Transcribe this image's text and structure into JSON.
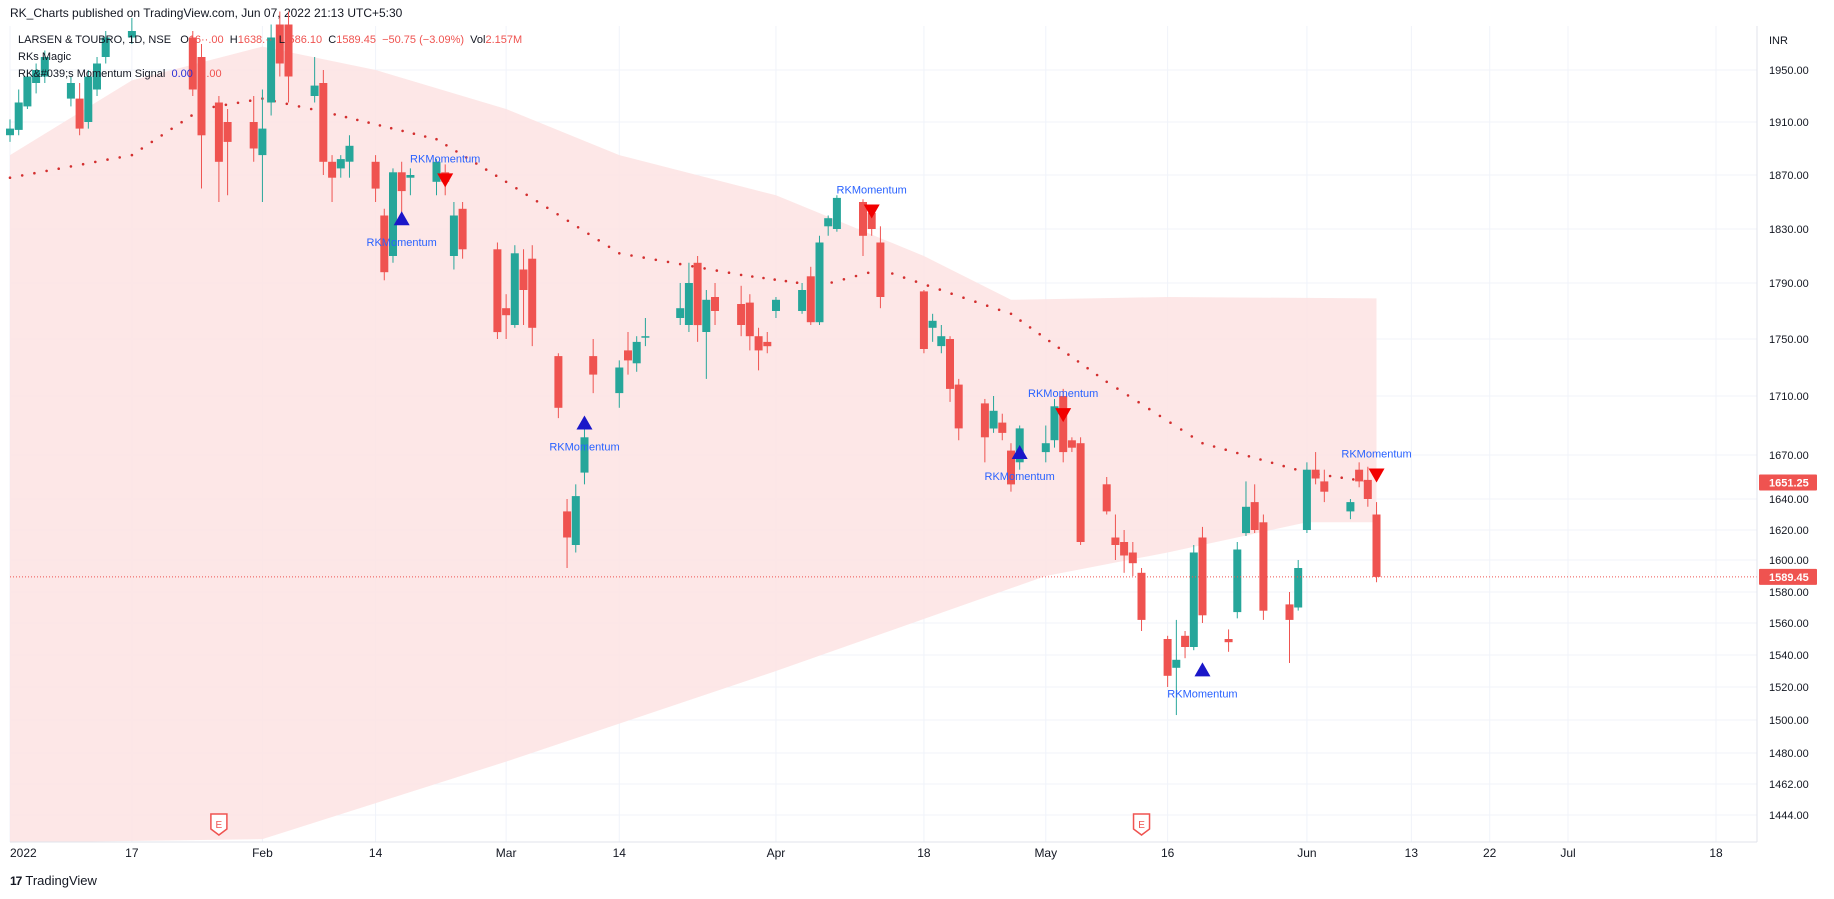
{
  "header": {
    "published": "RK_Charts published on TradingView.com, Jun 07, 2022 21:13 UTC+5:30"
  },
  "legend": {
    "symbol": "LARSEN & TOUBRO, 1D, NSE",
    "o_label": "O",
    "o_value": "16··.00",
    "h_label": "H",
    "h_value": "1638.··",
    "l_label": "L",
    "l_value": "·586.10",
    "c_label": "C",
    "c_value": "1589.45",
    "change": "−50.75 (−3.09%)",
    "vol_label": "Vol",
    "vol_value": "2.157M",
    "indicator1": "RKs Magic",
    "indicator2": "RK&#039;s Momentum Signal",
    "indicator2_v1": "0.00",
    "indicator2_v2": "··.00"
  },
  "footer": {
    "brand": "TradingView"
  },
  "colors": {
    "up": "#26a69a",
    "down": "#ef5350",
    "band": "#fde3e3",
    "dots": "#d32f2f",
    "buy_marker": "#1a17c9",
    "sell_marker": "#f20000",
    "signal_text": "#2962ff",
    "grid": "#f0f3fa"
  },
  "chart_data": {
    "type": "candlestick",
    "currency": "INR",
    "ylim": [
      1430,
      1970
    ],
    "y_ticks": [
      1950,
      1910,
      1870,
      1830,
      1790,
      1750,
      1710,
      1670,
      1640,
      1620,
      1600,
      1580,
      1560,
      1540,
      1520,
      1500,
      1480,
      1462,
      1444
    ],
    "y_tick_labels": [
      "1950.00",
      "1910.00",
      "1870.00",
      "1830.00",
      "1790.00",
      "1750.00",
      "1710.00",
      "1670.00",
      "1640.00",
      "1620.00",
      "1600.00",
      "1580.00",
      "1560.00",
      "1540.00",
      "1520.00",
      "1500.00",
      "1480.00",
      "1462.00",
      "1444.00"
    ],
    "x_labels": [
      {
        "label": "2022",
        "date": "2022-01-03"
      },
      {
        "label": "17",
        "date": "2022-01-17"
      },
      {
        "label": "Feb",
        "date": "2022-02-01"
      },
      {
        "label": "14",
        "date": "2022-02-14"
      },
      {
        "label": "Mar",
        "date": "2022-03-01"
      },
      {
        "label": "14",
        "date": "2022-03-14"
      },
      {
        "label": "Apr",
        "date": "2022-04-01"
      },
      {
        "label": "18",
        "date": "2022-04-18"
      },
      {
        "label": "May",
        "date": "2022-05-02"
      },
      {
        "label": "16",
        "date": "2022-05-16"
      },
      {
        "label": "Jun",
        "date": "2022-06-01"
      },
      {
        "label": "13",
        "date": "2022-06-13"
      },
      {
        "label": "22",
        "date": "2022-06-22"
      },
      {
        "label": "Jul",
        "date": "2022-07-01"
      },
      {
        "label": "18",
        "date": "2022-07-18"
      }
    ],
    "price_labels": [
      {
        "text": "1651.25",
        "value": 1651.25
      },
      {
        "text": "1589.45",
        "value": 1589.45
      }
    ],
    "current_price": 1589.45,
    "candles": [
      {
        "d": "2022-01-03",
        "o": 1900,
        "h": 1912,
        "c": 1905,
        "l": 1895
      },
      {
        "d": "2022-01-04",
        "o": 1904,
        "h": 1935,
        "c": 1925,
        "l": 1900
      },
      {
        "d": "2022-01-05",
        "o": 1922,
        "h": 1950,
        "c": 1945,
        "l": 1920
      },
      {
        "d": "2022-01-06",
        "o": 1940,
        "h": 1955,
        "c": 1950,
        "l": 1932
      },
      {
        "d": "2022-01-07",
        "o": 1945,
        "h": 1965,
        "c": 1960,
        "l": 1940
      },
      {
        "d": "2022-01-10",
        "o": 1928,
        "h": 1945,
        "c": 1940,
        "l": 1922
      },
      {
        "d": "2022-01-11",
        "o": 1928,
        "h": 1940,
        "c": 1905,
        "l": 1900
      },
      {
        "d": "2022-01-12",
        "o": 1910,
        "h": 1950,
        "c": 1945,
        "l": 1905
      },
      {
        "d": "2022-01-13",
        "o": 1935,
        "h": 1960,
        "c": 1955,
        "l": 1930
      },
      {
        "d": "2022-01-14",
        "o": 1960,
        "h": 1980,
        "c": 1975,
        "l": 1955
      },
      {
        "d": "2022-01-17",
        "o": 1975,
        "h": 1990,
        "c": 1980,
        "l": 1970
      },
      {
        "d": "2022-01-24",
        "o": 1975,
        "h": 1980,
        "c": 1935,
        "l": 1930
      },
      {
        "d": "2022-01-25",
        "o": 1960,
        "h": 1970,
        "c": 1900,
        "l": 1860
      },
      {
        "d": "2022-01-27",
        "o": 1925,
        "h": 1930,
        "c": 1880,
        "l": 1850
      },
      {
        "d": "2022-01-28",
        "o": 1910,
        "h": 1920,
        "c": 1895,
        "l": 1855
      },
      {
        "d": "2022-01-31",
        "o": 1910,
        "h": 1930,
        "c": 1890,
        "l": 1880
      },
      {
        "d": "2022-02-01",
        "o": 1885,
        "h": 1935,
        "c": 1905,
        "l": 1850
      },
      {
        "d": "2022-02-02",
        "o": 1925,
        "h": 1985,
        "c": 1975,
        "l": 1915
      },
      {
        "d": "2022-02-03",
        "o": 1985,
        "h": 1995,
        "c": 1955,
        "l": 1945
      },
      {
        "d": "2022-02-04",
        "o": 1985,
        "h": 1995,
        "c": 1945,
        "l": 1925
      },
      {
        "d": "2022-02-07",
        "o": 1930,
        "h": 1960,
        "c": 1938,
        "l": 1925
      },
      {
        "d": "2022-02-08",
        "o": 1940,
        "h": 1950,
        "c": 1880,
        "l": 1870
      },
      {
        "d": "2022-02-09",
        "o": 1880,
        "h": 1885,
        "c": 1868,
        "l": 1850
      },
      {
        "d": "2022-02-10",
        "o": 1875,
        "h": 1885,
        "c": 1882,
        "l": 1868
      },
      {
        "d": "2022-02-11",
        "o": 1880,
        "h": 1900,
        "c": 1892,
        "l": 1868
      },
      {
        "d": "2022-02-14",
        "o": 1880,
        "h": 1885,
        "c": 1860,
        "l": 1850
      },
      {
        "d": "2022-02-15",
        "o": 1840,
        "h": 1845,
        "c": 1798,
        "l": 1792
      },
      {
        "d": "2022-02-16",
        "o": 1810,
        "h": 1875,
        "c": 1872,
        "l": 1805
      },
      {
        "d": "2022-02-17",
        "o": 1872,
        "h": 1880,
        "c": 1858,
        "l": 1840
      },
      {
        "d": "2022-02-18",
        "o": 1868,
        "h": 1875,
        "c": 1870,
        "l": 1855
      },
      {
        "d": "2022-02-21",
        "o": 1865,
        "h": 1882,
        "c": 1880,
        "l": 1855
      },
      {
        "d": "2022-02-22",
        "o": 1872,
        "h": 1878,
        "c": 1865,
        "l": 1855
      },
      {
        "d": "2022-02-23",
        "o": 1810,
        "h": 1850,
        "c": 1840,
        "l": 1800
      },
      {
        "d": "2022-02-24",
        "o": 1845,
        "h": 1850,
        "c": 1815,
        "l": 1808
      },
      {
        "d": "2022-02-28",
        "o": 1815,
        "h": 1820,
        "c": 1755,
        "l": 1750
      },
      {
        "d": "2022-03-01",
        "o": 1772,
        "h": 1782,
        "c": 1767,
        "l": 1750
      },
      {
        "d": "2022-03-02",
        "o": 1760,
        "h": 1818,
        "c": 1812,
        "l": 1758
      },
      {
        "d": "2022-03-03",
        "o": 1800,
        "h": 1815,
        "c": 1785,
        "l": 1760
      },
      {
        "d": "2022-03-04",
        "o": 1808,
        "h": 1818,
        "c": 1758,
        "l": 1745
      },
      {
        "d": "2022-03-07",
        "o": 1738,
        "h": 1740,
        "c": 1702,
        "l": 1695
      },
      {
        "d": "2022-03-08",
        "o": 1632,
        "h": 1640,
        "c": 1615,
        "l": 1595
      },
      {
        "d": "2022-03-09",
        "o": 1610,
        "h": 1650,
        "c": 1642,
        "l": 1605
      },
      {
        "d": "2022-03-10",
        "o": 1658,
        "h": 1688,
        "c": 1682,
        "l": 1650
      },
      {
        "d": "2022-03-11",
        "o": 1738,
        "h": 1750,
        "c": 1725,
        "l": 1712
      },
      {
        "d": "2022-03-14",
        "o": 1712,
        "h": 1735,
        "c": 1730,
        "l": 1702
      },
      {
        "d": "2022-03-15",
        "o": 1742,
        "h": 1755,
        "c": 1735,
        "l": 1725
      },
      {
        "d": "2022-03-16",
        "o": 1733,
        "h": 1752,
        "c": 1748,
        "l": 1727
      },
      {
        "d": "2022-03-17",
        "o": 1752,
        "h": 1765,
        "c": 1752,
        "l": 1745
      },
      {
        "d": "2022-03-21",
        "o": 1765,
        "h": 1790,
        "c": 1772,
        "l": 1760
      },
      {
        "d": "2022-03-22",
        "o": 1760,
        "h": 1805,
        "c": 1790,
        "l": 1755
      },
      {
        "d": "2022-03-23",
        "o": 1805,
        "h": 1810,
        "c": 1760,
        "l": 1748
      },
      {
        "d": "2022-03-24",
        "o": 1755,
        "h": 1785,
        "c": 1778,
        "l": 1722
      },
      {
        "d": "2022-03-25",
        "o": 1780,
        "h": 1790,
        "c": 1770,
        "l": 1760
      },
      {
        "d": "2022-03-28",
        "o": 1775,
        "h": 1788,
        "c": 1760,
        "l": 1752
      },
      {
        "d": "2022-03-29",
        "o": 1776,
        "h": 1782,
        "c": 1752,
        "l": 1742
      },
      {
        "d": "2022-03-30",
        "o": 1752,
        "h": 1758,
        "c": 1742,
        "l": 1728
      },
      {
        "d": "2022-03-31",
        "o": 1748,
        "h": 1755,
        "c": 1745,
        "l": 1740
      },
      {
        "d": "2022-04-01",
        "o": 1770,
        "h": 1780,
        "c": 1778,
        "l": 1765
      },
      {
        "d": "2022-04-04",
        "o": 1770,
        "h": 1790,
        "c": 1785,
        "l": 1768
      },
      {
        "d": "2022-04-05",
        "o": 1795,
        "h": 1802,
        "c": 1762,
        "l": 1760
      },
      {
        "d": "2022-04-06",
        "o": 1762,
        "h": 1825,
        "c": 1820,
        "l": 1760
      },
      {
        "d": "2022-04-07",
        "o": 1832,
        "h": 1840,
        "c": 1838,
        "l": 1825
      },
      {
        "d": "2022-04-08",
        "o": 1830,
        "h": 1855,
        "c": 1853,
        "l": 1828
      },
      {
        "d": "2022-04-11",
        "o": 1850,
        "h": 1852,
        "c": 1825,
        "l": 1810
      },
      {
        "d": "2022-04-12",
        "o": 1842,
        "h": 1845,
        "c": 1830,
        "l": 1825
      },
      {
        "d": "2022-04-13",
        "o": 1820,
        "h": 1832,
        "c": 1780,
        "l": 1772
      },
      {
        "d": "2022-04-18",
        "o": 1784,
        "h": 1785,
        "c": 1743,
        "l": 1740
      },
      {
        "d": "2022-04-19",
        "o": 1758,
        "h": 1768,
        "c": 1763,
        "l": 1748
      },
      {
        "d": "2022-04-20",
        "o": 1745,
        "h": 1760,
        "c": 1752,
        "l": 1740
      },
      {
        "d": "2022-04-21",
        "o": 1750,
        "h": 1752,
        "c": 1715,
        "l": 1706
      },
      {
        "d": "2022-04-22",
        "o": 1718,
        "h": 1722,
        "c": 1688,
        "l": 1680
      },
      {
        "d": "2022-04-25",
        "o": 1705,
        "h": 1708,
        "c": 1682,
        "l": 1665
      },
      {
        "d": "2022-04-26",
        "o": 1688,
        "h": 1710,
        "c": 1700,
        "l": 1685
      },
      {
        "d": "2022-04-27",
        "o": 1692,
        "h": 1698,
        "c": 1685,
        "l": 1680
      },
      {
        "d": "2022-04-28",
        "o": 1673,
        "h": 1678,
        "c": 1650,
        "l": 1645
      },
      {
        "d": "2022-04-29",
        "o": 1665,
        "h": 1690,
        "c": 1688,
        "l": 1660
      },
      {
        "d": "2022-05-02",
        "o": 1672,
        "h": 1690,
        "c": 1678,
        "l": 1665
      },
      {
        "d": "2022-05-03",
        "o": 1680,
        "h": 1708,
        "c": 1703,
        "l": 1675
      },
      {
        "d": "2022-05-04",
        "o": 1710,
        "h": 1715,
        "c": 1672,
        "l": 1665
      },
      {
        "d": "2022-05-05",
        "o": 1680,
        "h": 1682,
        "c": 1675,
        "l": 1672
      },
      {
        "d": "2022-05-06",
        "o": 1678,
        "h": 1682,
        "c": 1612,
        "l": 1610
      },
      {
        "d": "2022-05-09",
        "o": 1650,
        "h": 1655,
        "c": 1632,
        "l": 1630
      },
      {
        "d": "2022-05-10",
        "o": 1615,
        "h": 1630,
        "c": 1610,
        "l": 1600
      },
      {
        "d": "2022-05-11",
        "o": 1612,
        "h": 1620,
        "c": 1603,
        "l": 1592
      },
      {
        "d": "2022-05-12",
        "o": 1605,
        "h": 1612,
        "c": 1598,
        "l": 1590
      },
      {
        "d": "2022-05-13",
        "o": 1592,
        "h": 1595,
        "c": 1562,
        "l": 1555
      },
      {
        "d": "2022-05-16",
        "o": 1550,
        "h": 1552,
        "c": 1527,
        "l": 1520
      },
      {
        "d": "2022-05-17",
        "o": 1532,
        "h": 1562,
        "c": 1537,
        "l": 1503
      },
      {
        "d": "2022-05-18",
        "o": 1552,
        "h": 1555,
        "c": 1545,
        "l": 1538
      },
      {
        "d": "2022-05-19",
        "o": 1545,
        "h": 1610,
        "c": 1605,
        "l": 1543
      },
      {
        "d": "2022-05-20",
        "o": 1615,
        "h": 1622,
        "c": 1565,
        "l": 1560
      },
      {
        "d": "2022-05-23",
        "o": 1550,
        "h": 1556,
        "c": 1548,
        "l": 1542
      },
      {
        "d": "2022-05-24",
        "o": 1567,
        "h": 1612,
        "c": 1607,
        "l": 1563
      },
      {
        "d": "2022-05-25",
        "o": 1618,
        "h": 1652,
        "c": 1635,
        "l": 1616
      },
      {
        "d": "2022-05-26",
        "o": 1638,
        "h": 1650,
        "c": 1620,
        "l": 1618
      },
      {
        "d": "2022-05-27",
        "o": 1625,
        "h": 1630,
        "c": 1568,
        "l": 1562
      },
      {
        "d": "2022-05-30",
        "o": 1572,
        "h": 1580,
        "c": 1562,
        "l": 1535
      },
      {
        "d": "2022-05-31",
        "o": 1570,
        "h": 1600,
        "c": 1595,
        "l": 1568
      },
      {
        "d": "2022-06-01",
        "o": 1620,
        "h": 1665,
        "c": 1660,
        "l": 1618
      },
      {
        "d": "2022-06-02",
        "o": 1660,
        "h": 1672,
        "c": 1654,
        "l": 1650
      },
      {
        "d": "2022-06-03",
        "o": 1652,
        "h": 1660,
        "c": 1645,
        "l": 1638
      },
      {
        "d": "2022-06-06",
        "o": 1632,
        "h": 1640,
        "c": 1638,
        "l": 1627
      },
      {
        "d": "2022-06-07",
        "o": 1660,
        "h": 1665,
        "c": 1652,
        "l": 1648
      },
      {
        "d": "2022-06-08",
        "o": 1653,
        "h": 1662,
        "c": 1640,
        "l": 1635
      },
      {
        "d": "2022-06-09",
        "o": 1630,
        "h": 1638,
        "c": 1589.45,
        "l": 1586.1
      }
    ],
    "band": {
      "upper": [
        {
          "d": "2022-01-03",
          "v": 1885
        },
        {
          "d": "2022-01-17",
          "v": 1942
        },
        {
          "d": "2022-02-01",
          "v": 1968
        },
        {
          "d": "2022-02-14",
          "v": 1950
        },
        {
          "d": "2022-03-01",
          "v": 1920
        },
        {
          "d": "2022-03-14",
          "v": 1885
        },
        {
          "d": "2022-04-01",
          "v": 1855
        },
        {
          "d": "2022-04-18",
          "v": 1810
        },
        {
          "d": "2022-04-28",
          "v": 1778
        },
        {
          "d": "2022-05-16",
          "v": 1780
        },
        {
          "d": "2022-06-09",
          "v": 1779
        }
      ],
      "lower": [
        {
          "d": "2022-01-03",
          "v": 1428
        },
        {
          "d": "2022-02-01",
          "v": 1430
        },
        {
          "d": "2022-03-01",
          "v": 1475
        },
        {
          "d": "2022-04-01",
          "v": 1530
        },
        {
          "d": "2022-05-02",
          "v": 1590
        },
        {
          "d": "2022-05-16",
          "v": 1605
        },
        {
          "d": "2022-06-01",
          "v": 1625
        },
        {
          "d": "2022-06-09",
          "v": 1625
        }
      ]
    },
    "dotted_line": [
      {
        "d": "2022-01-03",
        "v": 1868
      },
      {
        "d": "2022-01-17",
        "v": 1885
      },
      {
        "d": "2022-01-25",
        "v": 1920
      },
      {
        "d": "2022-02-01",
        "v": 1928
      },
      {
        "d": "2022-02-08",
        "v": 1918
      },
      {
        "d": "2022-02-21",
        "v": 1897
      },
      {
        "d": "2022-03-01",
        "v": 1865
      },
      {
        "d": "2022-03-14",
        "v": 1812
      },
      {
        "d": "2022-03-28",
        "v": 1796
      },
      {
        "d": "2022-04-06",
        "v": 1788
      },
      {
        "d": "2022-04-13",
        "v": 1800
      },
      {
        "d": "2022-04-28",
        "v": 1768
      },
      {
        "d": "2022-05-09",
        "v": 1720
      },
      {
        "d": "2022-05-20",
        "v": 1678
      },
      {
        "d": "2022-06-01",
        "v": 1658
      },
      {
        "d": "2022-06-09",
        "v": 1651
      }
    ],
    "buy_signals": [
      {
        "d": "2022-02-17",
        "v": 1838,
        "label": "RKMomentum"
      },
      {
        "d": "2022-03-10",
        "v": 1692,
        "label": "RKMomentum"
      },
      {
        "d": "2022-04-29",
        "v": 1672,
        "label": "RKMomentum"
      },
      {
        "d": "2022-05-20",
        "v": 1531,
        "label": "RKMomentum"
      }
    ],
    "sell_signals": [
      {
        "d": "2022-02-22",
        "v": 1866,
        "label": "RKMomentum"
      },
      {
        "d": "2022-04-12",
        "v": 1843,
        "label": "RKMomentum"
      },
      {
        "d": "2022-05-04",
        "v": 1697,
        "label": "RKMomentum"
      },
      {
        "d": "2022-06-09",
        "v": 1656,
        "label": "RKMomentum"
      }
    ],
    "earnings": [
      "2022-01-27",
      "2022-05-13"
    ],
    "earnings_label": "E"
  }
}
